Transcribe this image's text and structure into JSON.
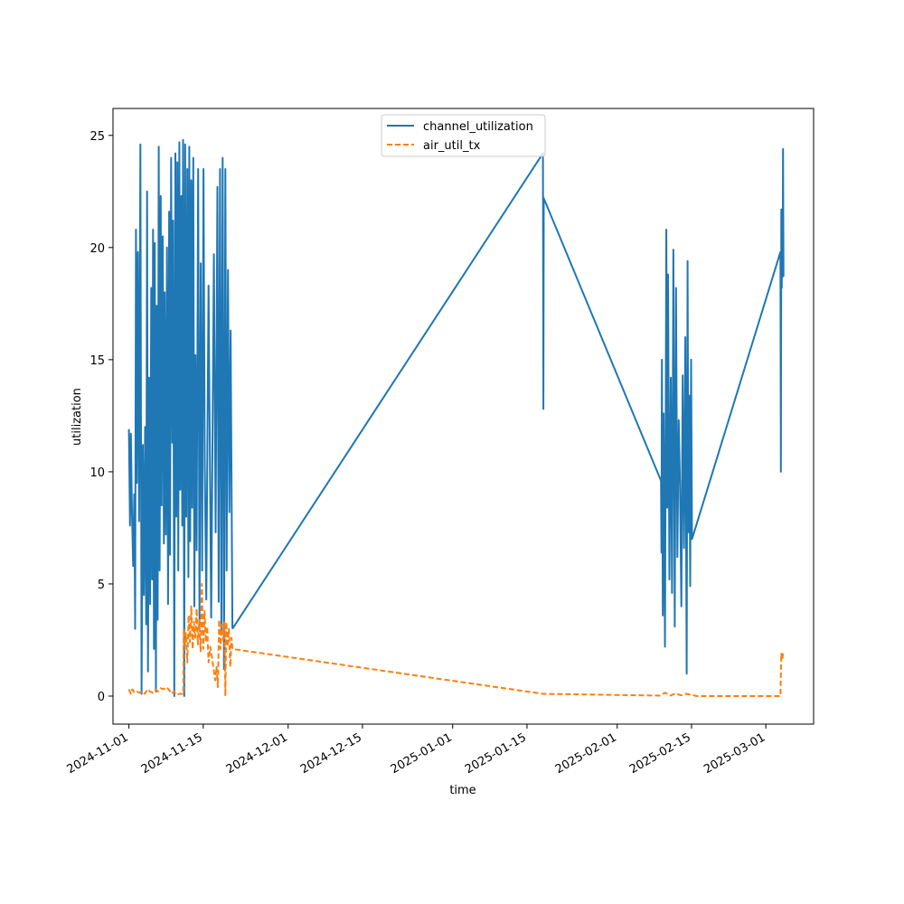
{
  "chart_data": {
    "type": "line",
    "title": "",
    "xlabel": "time",
    "ylabel": "utilization",
    "x_tick_labels": [
      "2024-11-01",
      "2024-11-15",
      "2024-12-01",
      "2024-12-15",
      "2025-01-01",
      "2025-01-15",
      "2025-02-01",
      "2025-02-15",
      "2025-03-01"
    ],
    "x_ticks": [
      "2024-11-01",
      "2024-11-15",
      "2024-12-01",
      "2024-12-15",
      "2025-01-01",
      "2025-01-15",
      "2025-02-01",
      "2025-02-15",
      "2025-03-01"
    ],
    "x_range": [
      "2024-10-29T00:00",
      "2025-03-10T00:00"
    ],
    "y_tick_labels": [
      "0",
      "5",
      "10",
      "15",
      "20",
      "25"
    ],
    "y_ticks": [
      0,
      5,
      10,
      15,
      20,
      25
    ],
    "ylim": [
      -1.25,
      26.2
    ],
    "grid": false,
    "legend_position": "top-center",
    "series": [
      {
        "name": "channel_utilization",
        "color": "#1f77b4",
        "style": "solid",
        "points": [
          [
            "2024-11-01T00:00",
            11.9
          ],
          [
            "2024-11-01T05:00",
            7.6
          ],
          [
            "2024-11-01T09:00",
            11.7
          ],
          [
            "2024-11-01T14:00",
            8.2
          ],
          [
            "2024-11-01T19:00",
            5.8
          ],
          [
            "2024-11-02T00:00",
            9.0
          ],
          [
            "2024-11-02T04:00",
            3.0
          ],
          [
            "2024-11-02T08:00",
            20.8
          ],
          [
            "2024-11-02T12:00",
            9.5
          ],
          [
            "2024-11-02T17:00",
            19.8
          ],
          [
            "2024-11-02T22:00",
            7.8
          ],
          [
            "2024-11-03T04:00",
            24.6
          ],
          [
            "2024-11-03T09:00",
            0.1
          ],
          [
            "2024-11-03T15:00",
            11.2
          ],
          [
            "2024-11-03T20:00",
            4.5
          ],
          [
            "2024-11-04T01:00",
            12.0
          ],
          [
            "2024-11-04T06:00",
            3.2
          ],
          [
            "2024-11-04T10:00",
            22.5
          ],
          [
            "2024-11-04T14:00",
            1.1
          ],
          [
            "2024-11-04T19:00",
            14.2
          ],
          [
            "2024-11-05T00:00",
            4.1
          ],
          [
            "2024-11-05T05:00",
            18.2
          ],
          [
            "2024-11-05T09:00",
            5.2
          ],
          [
            "2024-11-05T13:00",
            20.8
          ],
          [
            "2024-11-05T17:00",
            2.1
          ],
          [
            "2024-11-05T21:00",
            20.2
          ],
          [
            "2024-11-06T02:00",
            0.2
          ],
          [
            "2024-11-06T06:00",
            17.4
          ],
          [
            "2024-11-06T10:00",
            3.4
          ],
          [
            "2024-11-06T15:00",
            24.5
          ],
          [
            "2024-11-06T19:00",
            5.6
          ],
          [
            "2024-11-07T00:00",
            22.3
          ],
          [
            "2024-11-07T04:00",
            8.5
          ],
          [
            "2024-11-07T09:00",
            20.5
          ],
          [
            "2024-11-07T14:00",
            6.8
          ],
          [
            "2024-11-07T18:00",
            18.0
          ],
          [
            "2024-11-07T23:00",
            7.2
          ],
          [
            "2024-11-08T04:00",
            20.0
          ],
          [
            "2024-11-08T09:00",
            4.1
          ],
          [
            "2024-11-08T14:00",
            21.6
          ],
          [
            "2024-11-08T18:00",
            6.3
          ],
          [
            "2024-11-08T23:00",
            24.0
          ],
          [
            "2024-11-09T04:00",
            11.3
          ],
          [
            "2024-11-09T08:00",
            21.2
          ],
          [
            "2024-11-09T13:00",
            0.0
          ],
          [
            "2024-11-09T18:00",
            24.2
          ],
          [
            "2024-11-09T22:00",
            8.0
          ],
          [
            "2024-11-10T03:00",
            23.8
          ],
          [
            "2024-11-10T07:00",
            5.6
          ],
          [
            "2024-11-10T12:00",
            24.7
          ],
          [
            "2024-11-10T16:00",
            9.2
          ],
          [
            "2024-11-10T21:00",
            22.3
          ],
          [
            "2024-11-11T01:00",
            7.6
          ],
          [
            "2024-11-11T05:00",
            24.8
          ],
          [
            "2024-11-11T10:00",
            0.0
          ],
          [
            "2024-11-11T14:00",
            24.6
          ],
          [
            "2024-11-11T19:00",
            8.0
          ],
          [
            "2024-11-12T00:00",
            23.5
          ],
          [
            "2024-11-12T05:00",
            5.3
          ],
          [
            "2024-11-12T09:00",
            24.5
          ],
          [
            "2024-11-12T13:00",
            6.9
          ],
          [
            "2024-11-12T18:00",
            23.0
          ],
          [
            "2024-11-12T22:00",
            8.4
          ],
          [
            "2024-11-13T03:00",
            24.0
          ],
          [
            "2024-11-13T08:00",
            4.0
          ],
          [
            "2024-11-13T13:00",
            15.2
          ],
          [
            "2024-11-13T18:00",
            6.5
          ],
          [
            "2024-11-14T01:00",
            23.5
          ],
          [
            "2024-11-14T07:00",
            3.2
          ],
          [
            "2024-11-14T13:00",
            19.3
          ],
          [
            "2024-11-14T19:00",
            5.6
          ],
          [
            "2024-11-15T01:00",
            23.5
          ],
          [
            "2024-11-15T07:00",
            10.4
          ],
          [
            "2024-11-15T14:00",
            4.3
          ],
          [
            "2024-11-16T00:00",
            18.3
          ],
          [
            "2024-11-16T12:00",
            3.5
          ],
          [
            "2024-11-17T00:00",
            19.7
          ],
          [
            "2024-11-17T08:00",
            7.3
          ],
          [
            "2024-11-17T16:00",
            22.7
          ],
          [
            "2024-11-17T22:00",
            4.2
          ],
          [
            "2024-11-18T04:00",
            23.5
          ],
          [
            "2024-11-18T10:00",
            2.8
          ],
          [
            "2024-11-18T16:00",
            24.0
          ],
          [
            "2024-11-18T22:00",
            1.2
          ],
          [
            "2024-11-19T04:00",
            23.5
          ],
          [
            "2024-11-19T10:00",
            5.6
          ],
          [
            "2024-11-19T16:00",
            19.0
          ],
          [
            "2024-11-19T22:00",
            8.2
          ],
          [
            "2024-11-20T04:00",
            16.3
          ],
          [
            "2024-11-20T12:00",
            3.0
          ]
        ]
      },
      {
        "name": "channel_utilization",
        "color": "#1f77b4",
        "style": "solid",
        "points": [
          [
            "2024-11-20T12:00",
            3.0
          ],
          [
            "2025-01-18T00:00",
            24.2
          ],
          [
            "2025-01-18T02:00",
            12.8
          ],
          [
            "2025-01-18T04:00",
            22.2
          ],
          [
            "2025-02-09T06:00",
            9.6
          ],
          [
            "2025-02-09T08:00",
            6.4
          ],
          [
            "2025-02-09T10:00",
            15.0
          ],
          [
            "2025-02-09T14:00",
            3.6
          ],
          [
            "2025-02-09T18:00",
            12.6
          ],
          [
            "2025-02-10T00:00",
            2.2
          ],
          [
            "2025-02-10T06:00",
            20.8
          ],
          [
            "2025-02-10T10:00",
            8.4
          ],
          [
            "2025-02-10T14:00",
            18.8
          ],
          [
            "2025-02-10T20:00",
            5.2
          ],
          [
            "2025-02-11T02:00",
            14.2
          ],
          [
            "2025-02-11T08:00",
            4.6
          ],
          [
            "2025-02-11T14:00",
            19.9
          ],
          [
            "2025-02-11T20:00",
            3.1
          ],
          [
            "2025-02-12T02:00",
            18.2
          ],
          [
            "2025-02-12T08:00",
            6.2
          ],
          [
            "2025-02-12T14:00",
            12.3
          ],
          [
            "2025-02-12T20:00",
            9.5
          ],
          [
            "2025-02-13T02:00",
            4.0
          ],
          [
            "2025-02-13T08:00",
            14.3
          ],
          [
            "2025-02-13T14:00",
            6.6
          ],
          [
            "2025-02-13T20:00",
            16.0
          ],
          [
            "2025-02-14T02:00",
            1.0
          ],
          [
            "2025-02-14T06:00",
            19.4
          ],
          [
            "2025-02-14T10:00",
            7.3
          ],
          [
            "2025-02-14T14:00",
            13.4
          ],
          [
            "2025-02-14T18:00",
            4.9
          ],
          [
            "2025-02-14T22:00",
            15.0
          ],
          [
            "2025-02-15T02:00",
            7.0
          ],
          [
            "2025-03-03T18:00",
            19.8
          ],
          [
            "2025-03-03T20:00",
            10.0
          ],
          [
            "2025-03-03T22:00",
            21.7
          ],
          [
            "2025-03-04T00:00",
            18.2
          ],
          [
            "2025-03-04T02:00",
            21.7
          ],
          [
            "2025-03-04T04:00",
            18.7
          ],
          [
            "2025-03-04T06:00",
            24.4
          ],
          [
            "2025-03-04T08:00",
            18.7
          ]
        ]
      },
      {
        "name": "air_util_tx",
        "color": "#ff7f0e",
        "style": "dashed",
        "points": [
          [
            "2024-11-01T00:00",
            0.3
          ],
          [
            "2024-11-01T08:00",
            0.1
          ],
          [
            "2024-11-01T16:00",
            0.3
          ],
          [
            "2024-11-02T00:00",
            0.15
          ],
          [
            "2024-11-02T12:00",
            0.2
          ],
          [
            "2024-11-03T00:00",
            0.15
          ],
          [
            "2024-11-03T12:00",
            0.2
          ],
          [
            "2024-11-04T00:00",
            0.1
          ],
          [
            "2024-11-04T12:00",
            0.3
          ],
          [
            "2024-11-05T00:00",
            0.2
          ],
          [
            "2024-11-05T12:00",
            0.15
          ],
          [
            "2024-11-06T00:00",
            0.3
          ],
          [
            "2024-11-06T12:00",
            0.2
          ],
          [
            "2024-11-07T00:00",
            0.35
          ],
          [
            "2024-11-07T12:00",
            0.3
          ],
          [
            "2024-11-08T00:00",
            0.4
          ],
          [
            "2024-11-08T12:00",
            0.3
          ],
          [
            "2024-11-09T00:00",
            0.1
          ],
          [
            "2024-11-09T12:00",
            0.2
          ],
          [
            "2024-11-10T00:00",
            0.05
          ],
          [
            "2024-11-10T12:00",
            0.1
          ],
          [
            "2024-11-11T06:00",
            0.1
          ],
          [
            "2024-11-11T08:00",
            3.0
          ],
          [
            "2024-11-11T12:00",
            2.2
          ],
          [
            "2024-11-11T18:00",
            2.8
          ],
          [
            "2024-11-12T00:00",
            1.5
          ],
          [
            "2024-11-12T06:00",
            3.6
          ],
          [
            "2024-11-12T12:00",
            2.4
          ],
          [
            "2024-11-12T18:00",
            4.0
          ],
          [
            "2024-11-13T00:00",
            2.1
          ],
          [
            "2024-11-13T06:00",
            3.3
          ],
          [
            "2024-11-13T12:00",
            2.6
          ],
          [
            "2024-11-13T18:00",
            3.9
          ],
          [
            "2024-11-14T00:00",
            2.3
          ],
          [
            "2024-11-14T06:00",
            3.4
          ],
          [
            "2024-11-14T12:00",
            2.0
          ],
          [
            "2024-11-14T18:00",
            5.0
          ],
          [
            "2024-11-15T00:00",
            2.1
          ],
          [
            "2024-11-15T06:00",
            3.8
          ],
          [
            "2024-11-15T12:00",
            2.4
          ],
          [
            "2024-11-15T18:00",
            3.1
          ],
          [
            "2024-11-16T00:00",
            1.5
          ],
          [
            "2024-11-16T08:00",
            2.2
          ],
          [
            "2024-11-16T16:00",
            1.7
          ],
          [
            "2024-11-17T00:00",
            1.1
          ],
          [
            "2024-11-17T06:00",
            0.7
          ],
          [
            "2024-11-17T12:00",
            1.3
          ],
          [
            "2024-11-17T18:00",
            0.4
          ],
          [
            "2024-11-18T00:00",
            3.4
          ],
          [
            "2024-11-18T06:00",
            2.1
          ],
          [
            "2024-11-18T12:00",
            3.2
          ],
          [
            "2024-11-18T18:00",
            2.5
          ],
          [
            "2024-11-19T00:00",
            3.3
          ],
          [
            "2024-11-19T04:00",
            0.0
          ],
          [
            "2024-11-19T08:00",
            3.3
          ],
          [
            "2024-11-19T14:00",
            2.2
          ],
          [
            "2024-11-19T20:00",
            3.0
          ],
          [
            "2024-11-20T02:00",
            1.3
          ],
          [
            "2024-11-20T08:00",
            2.6
          ],
          [
            "2024-11-20T12:00",
            2.1
          ],
          [
            "2025-01-18T00:00",
            0.1
          ],
          [
            "2025-02-09T00:00",
            0.02
          ],
          [
            "2025-02-10T00:00",
            0.15
          ],
          [
            "2025-02-11T00:00",
            0.02
          ],
          [
            "2025-02-12T00:00",
            0.12
          ],
          [
            "2025-02-13T00:00",
            0.03
          ],
          [
            "2025-02-14T00:00",
            0.1
          ],
          [
            "2025-02-15T00:00",
            0.05
          ],
          [
            "2025-02-16T00:00",
            0.0
          ],
          [
            "2025-03-03T18:00",
            0.0
          ],
          [
            "2025-03-03T22:00",
            1.9
          ],
          [
            "2025-03-04T02:00",
            1.6
          ],
          [
            "2025-03-04T06:00",
            1.9
          ]
        ]
      }
    ],
    "legend": [
      {
        "name": "channel_utilization",
        "color": "#1f77b4",
        "style": "solid"
      },
      {
        "name": "air_util_tx",
        "color": "#ff7f0e",
        "style": "dashed"
      }
    ]
  }
}
